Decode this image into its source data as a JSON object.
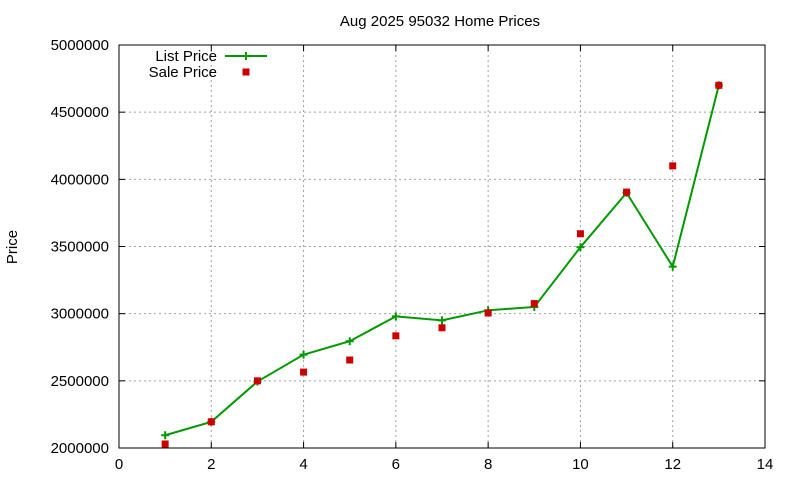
{
  "chart_data": {
    "type": "line",
    "title": "Aug 2025 95032 Home Prices",
    "xlabel": "",
    "ylabel": "Price",
    "xlim": [
      0,
      14
    ],
    "ylim": [
      2000000,
      5000000
    ],
    "xticks": [
      0,
      2,
      4,
      6,
      8,
      10,
      12,
      14
    ],
    "yticks": [
      2000000,
      2500000,
      3000000,
      3500000,
      4000000,
      4500000,
      5000000
    ],
    "grid": true,
    "legend_position": "top-left",
    "series": [
      {
        "name": "List Price",
        "style": "line-points",
        "marker": "plus",
        "color": "#009900",
        "x": [
          1,
          2,
          3,
          4,
          5,
          6,
          7,
          8,
          9,
          10,
          11,
          12,
          13
        ],
        "y": [
          2095000,
          2195000,
          2495000,
          2695000,
          2795000,
          2980000,
          2950000,
          3025000,
          3050000,
          3495000,
          3900000,
          3350000,
          4700000
        ]
      },
      {
        "name": "Sale Price",
        "style": "points",
        "marker": "square",
        "color": "#cc0000",
        "x": [
          1,
          2,
          3,
          4,
          5,
          6,
          7,
          8,
          9,
          10,
          11,
          12,
          13
        ],
        "y": [
          2030000,
          2195000,
          2500000,
          2565000,
          2655000,
          2835000,
          2895000,
          3005000,
          3075000,
          3595000,
          3905000,
          4100000,
          4700000
        ]
      }
    ]
  }
}
